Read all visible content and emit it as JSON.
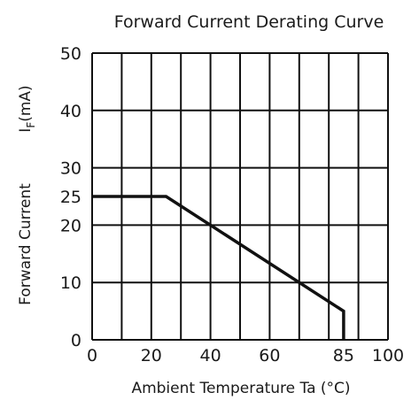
{
  "chart_data": {
    "type": "line",
    "title": "Forward Current Derating Curve",
    "xlabel": "Ambient Temperature Ta (°C)",
    "ylabel": "Forward Current",
    "ylabel_symbol": "I",
    "ylabel_subscript": "F",
    "ylabel_unit": "(mA)",
    "xlim": [
      0,
      100
    ],
    "ylim": [
      0,
      50
    ],
    "x_ticks": [
      {
        "value": 0,
        "label": "0"
      },
      {
        "value": 20,
        "label": "20"
      },
      {
        "value": 40,
        "label": "40"
      },
      {
        "value": 60,
        "label": "60"
      },
      {
        "value": 85,
        "label": "85"
      },
      {
        "value": 100,
        "label": "100"
      }
    ],
    "y_ticks": [
      {
        "value": 0,
        "label": "0"
      },
      {
        "value": 10,
        "label": "10"
      },
      {
        "value": 20,
        "label": "20"
      },
      {
        "value": 25,
        "label": "25"
      },
      {
        "value": 30,
        "label": "30"
      },
      {
        "value": 40,
        "label": "40"
      },
      {
        "value": 50,
        "label": "50"
      }
    ],
    "grid_x": [
      0,
      10,
      20,
      30,
      40,
      50,
      60,
      70,
      80,
      90,
      100
    ],
    "grid_y": [
      0,
      10,
      20,
      30,
      40,
      50
    ],
    "grid": true,
    "series": [
      {
        "x": [
          0,
          25,
          85,
          85
        ],
        "y": [
          25,
          25,
          5,
          0
        ]
      }
    ],
    "colors": {
      "grid": "#111111",
      "line": "#111111",
      "text": "#1a1a1a"
    }
  }
}
